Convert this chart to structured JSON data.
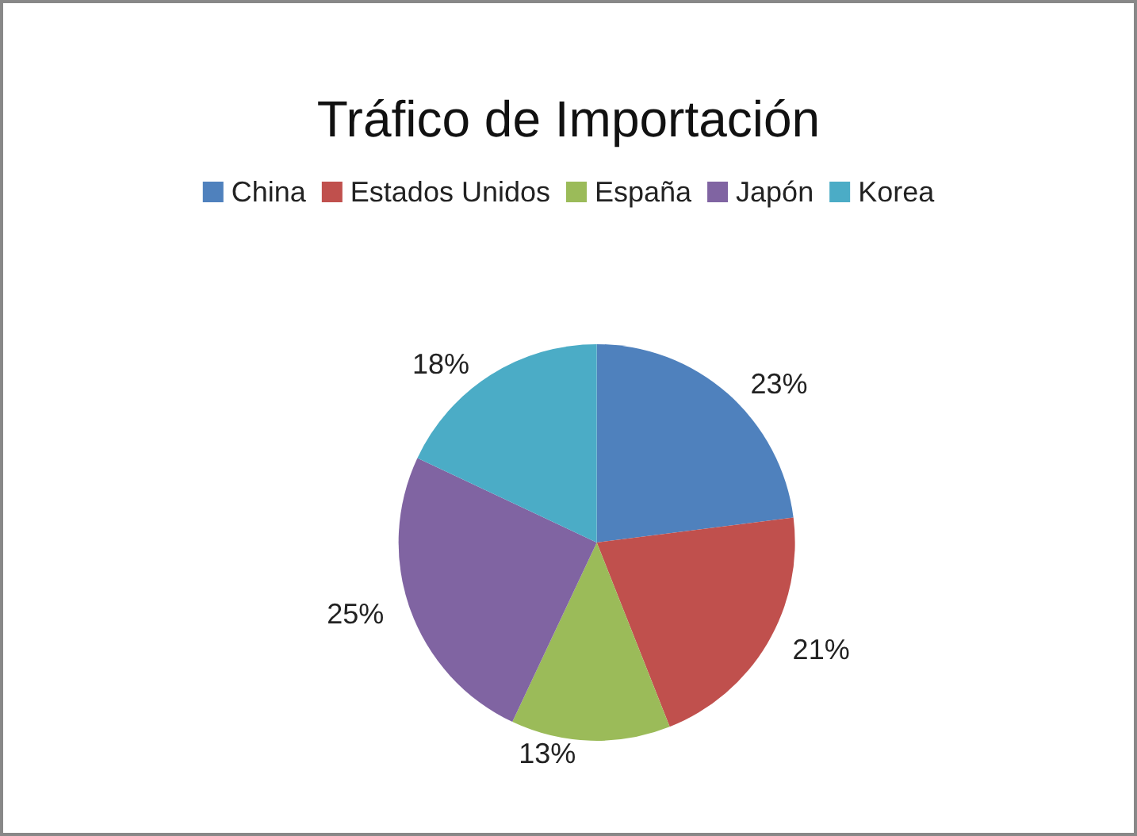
{
  "chart_data": {
    "type": "pie",
    "title": "Tráfico de Importación",
    "categories": [
      "China",
      "Estados Unidos",
      "España",
      "Japón",
      "Korea"
    ],
    "values": [
      23,
      21,
      13,
      25,
      18
    ],
    "colors": [
      "#4f81bd",
      "#c0504d",
      "#9bbb59",
      "#8064a2",
      "#4bacc6"
    ],
    "value_labels": [
      "23%",
      "21%",
      "13%",
      "25%",
      "18%"
    ],
    "legend": "top"
  }
}
